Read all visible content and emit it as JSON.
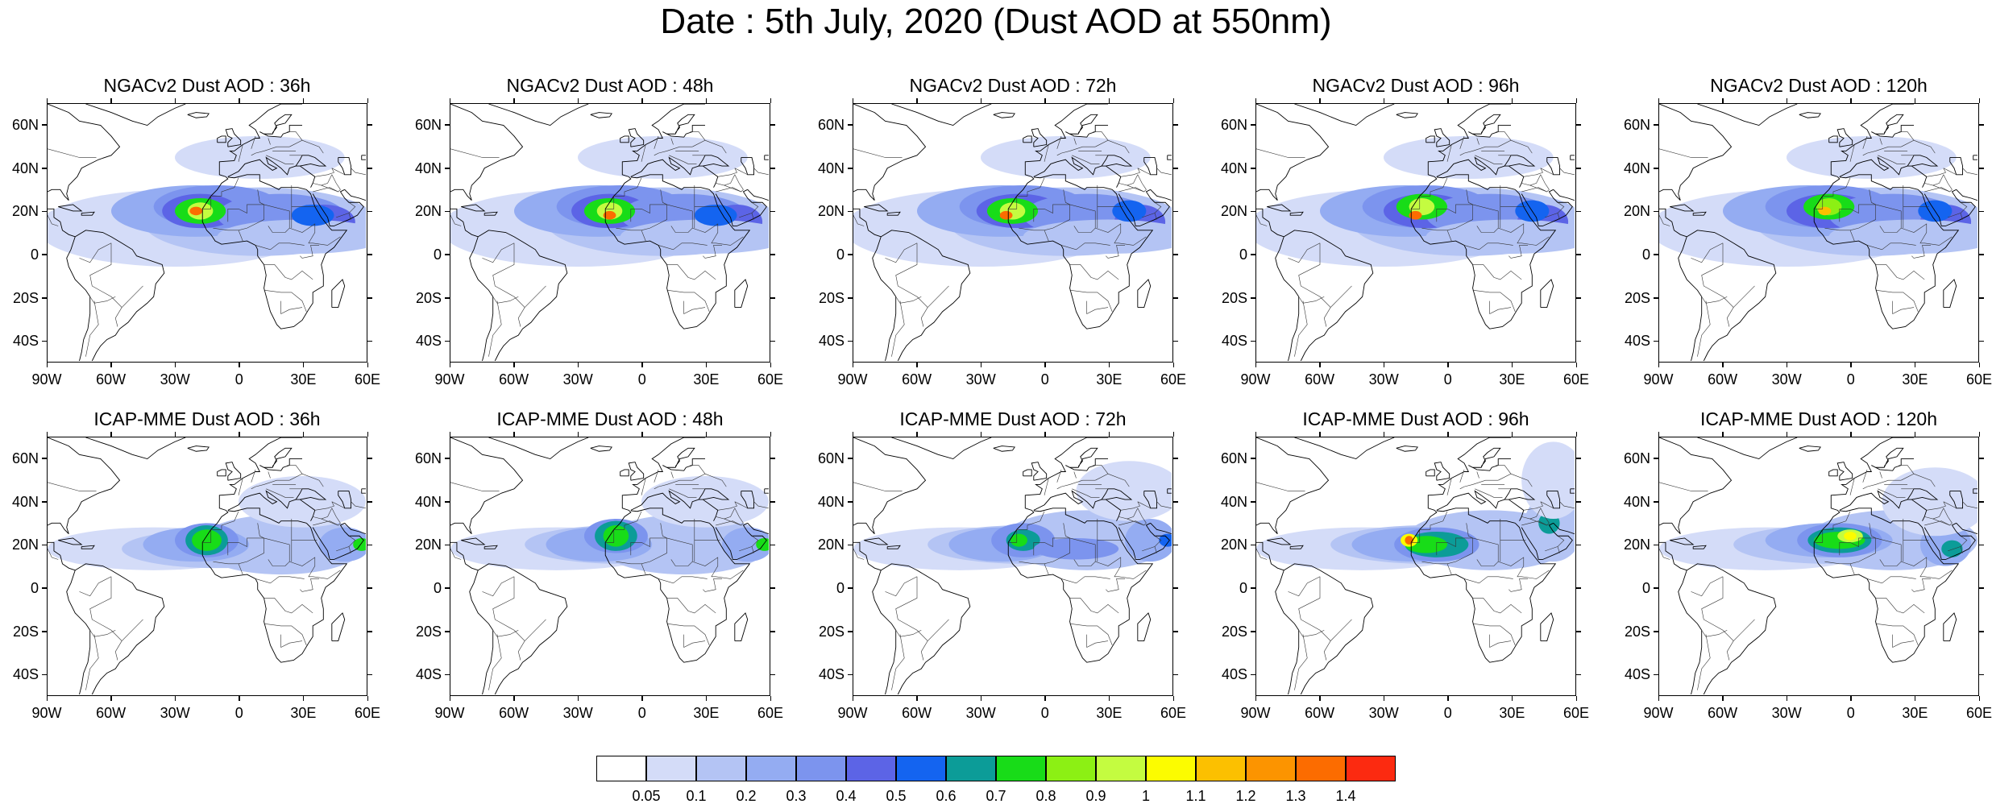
{
  "title": "Date : 5th July, 2020 (Dust AOD at 550nm)",
  "panels": [
    {
      "title": "NGACv2 Dust AOD : 36h",
      "model": "NGACv2",
      "forecast_hour": 36
    },
    {
      "title": "NGACv2 Dust AOD : 48h",
      "model": "NGACv2",
      "forecast_hour": 48
    },
    {
      "title": "NGACv2 Dust AOD : 72h",
      "model": "NGACv2",
      "forecast_hour": 72
    },
    {
      "title": "NGACv2 Dust AOD : 96h",
      "model": "NGACv2",
      "forecast_hour": 96
    },
    {
      "title": "NGACv2 Dust AOD : 120h",
      "model": "NGACv2",
      "forecast_hour": 120
    },
    {
      "title": "ICAP-MME Dust AOD : 36h",
      "model": "ICAP-MME",
      "forecast_hour": 36
    },
    {
      "title": "ICAP-MME Dust AOD : 48h",
      "model": "ICAP-MME",
      "forecast_hour": 48
    },
    {
      "title": "ICAP-MME Dust AOD : 72h",
      "model": "ICAP-MME",
      "forecast_hour": 72
    },
    {
      "title": "ICAP-MME Dust AOD : 96h",
      "model": "ICAP-MME",
      "forecast_hour": 96
    },
    {
      "title": "ICAP-MME Dust AOD : 120h",
      "model": "ICAP-MME",
      "forecast_hour": 120
    }
  ],
  "map_extent": {
    "lon_min": -90,
    "lon_max": 60,
    "lat_min": -50,
    "lat_max": 70
  },
  "lat_ticks": [
    "60N",
    "40N",
    "20N",
    "0",
    "20S",
    "40S"
  ],
  "lat_tick_values": [
    60,
    40,
    20,
    0,
    -20,
    -40
  ],
  "lon_ticks": [
    "90W",
    "60W",
    "30W",
    "0",
    "30E",
    "60E"
  ],
  "lon_tick_values": [
    -90,
    -60,
    -30,
    0,
    30,
    60
  ],
  "colorbar": {
    "levels": [
      "0.05",
      "0.1",
      "0.2",
      "0.3",
      "0.4",
      "0.5",
      "0.6",
      "0.7",
      "0.8",
      "0.9",
      "1",
      "1.1",
      "1.2",
      "1.3",
      "1.4"
    ],
    "colors": [
      "#ffffff",
      "#d4dcf8",
      "#b4c4f4",
      "#94acf2",
      "#7c94ee",
      "#5c64e6",
      "#1464f0",
      "#0c9c98",
      "#18dc18",
      "#8cf014",
      "#c4fc40",
      "#fcfc00",
      "#fcc000",
      "#fc9400",
      "#fc6c00",
      "#fc2a10"
    ]
  }
}
